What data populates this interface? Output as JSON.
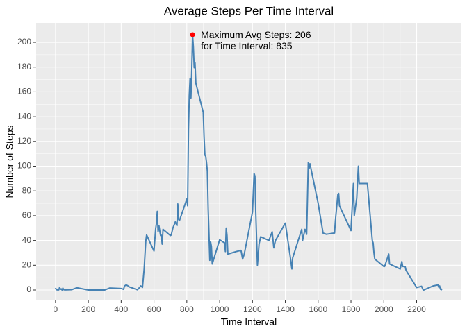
{
  "chart_data": {
    "type": "line",
    "title": "Average Steps Per Time Interval",
    "x_label": "Time Interval",
    "y_label": "Number of Steps",
    "x": [
      0,
      5,
      10,
      15,
      20,
      25,
      30,
      35,
      40,
      45,
      50,
      55,
      100,
      130,
      200,
      300,
      330,
      400,
      415,
      420,
      430,
      440,
      450,
      500,
      520,
      530,
      540,
      550,
      555,
      600,
      610,
      615,
      620,
      625,
      630,
      640,
      645,
      650,
      655,
      700,
      705,
      715,
      730,
      740,
      745,
      750,
      755,
      800,
      805,
      810,
      815,
      820,
      825,
      830,
      835,
      840,
      845,
      850,
      855,
      900,
      905,
      910,
      915,
      920,
      925,
      930,
      935,
      940,
      945,
      950,
      955,
      1000,
      1030,
      1035,
      1040,
      1045,
      1050,
      1100,
      1130,
      1140,
      1150,
      1200,
      1210,
      1215,
      1220,
      1230,
      1240,
      1250,
      1300,
      1320,
      1330,
      1340,
      1400,
      1430,
      1440,
      1445,
      1500,
      1505,
      1520,
      1530,
      1540,
      1545,
      1550,
      1600,
      1630,
      1650,
      1700,
      1705,
      1720,
      1725,
      1730,
      1800,
      1810,
      1815,
      1820,
      1835,
      1845,
      1850,
      1900,
      1930,
      1935,
      1940,
      1945,
      2000,
      2005,
      2030,
      2035,
      2100,
      2110,
      2115,
      2130,
      2135,
      2200,
      2230,
      2240,
      2245,
      2300,
      2330,
      2335,
      2340,
      2345,
      2350,
      2355
    ],
    "series": [
      {
        "name": "Average Steps",
        "color": "#4682b4",
        "values": [
          1.7,
          0.3,
          0.1,
          0.2,
          0.1,
          2.1,
          0.5,
          0.9,
          0,
          1.5,
          0.3,
          0.1,
          0.3,
          1.8,
          0,
          0,
          1.6,
          1.2,
          0.5,
          3.2,
          4.1,
          3.5,
          2.5,
          0.2,
          3.3,
          2.1,
          17,
          39.5,
          44.5,
          31.5,
          49.3,
          53.8,
          63.5,
          47,
          52,
          44,
          44.2,
          37,
          49,
          44,
          44.4,
          50,
          55,
          52,
          69.5,
          57,
          56,
          73.4,
          68,
          129,
          157,
          171,
          155,
          177,
          206.2,
          195.9,
          179.6,
          183.4,
          167,
          143.5,
          124,
          109,
          108,
          103,
          96,
          66,
          45,
          24,
          38.8,
          35,
          21,
          40.6,
          38,
          31,
          50,
          44,
          29,
          31,
          32,
          25,
          29,
          63,
          94,
          92,
          63,
          20,
          37,
          43,
          40,
          47,
          34,
          40,
          54,
          27,
          17,
          26,
          49,
          40,
          49,
          45,
          103,
          98,
          102,
          70,
          46,
          45,
          46,
          56,
          77,
          78,
          68,
          48,
          74,
          86,
          60,
          74,
          100,
          86,
          86,
          40,
          38,
          30,
          25,
          19,
          19,
          29,
          21,
          17,
          23,
          19,
          19,
          16,
          2,
          3,
          0,
          0.1,
          3.3,
          4.1,
          2.2,
          3.3,
          0.6,
          0.2,
          1.1
        ]
      }
    ],
    "annotation": {
      "x": 835,
      "y": 206.17,
      "color": "#ff0000",
      "lines": [
        "Maximum Avg Steps: 206",
        "for Time Interval: 835"
      ]
    },
    "xlim": [
      -118,
      2473
    ],
    "ylim": [
      -8.4,
      215.7
    ],
    "xticks": [
      0,
      200,
      400,
      600,
      800,
      1000,
      1200,
      1400,
      1600,
      1800,
      2000,
      2200
    ],
    "yticks": [
      0,
      20,
      40,
      60,
      80,
      100,
      120,
      140,
      160,
      180,
      200
    ],
    "grid": true
  }
}
